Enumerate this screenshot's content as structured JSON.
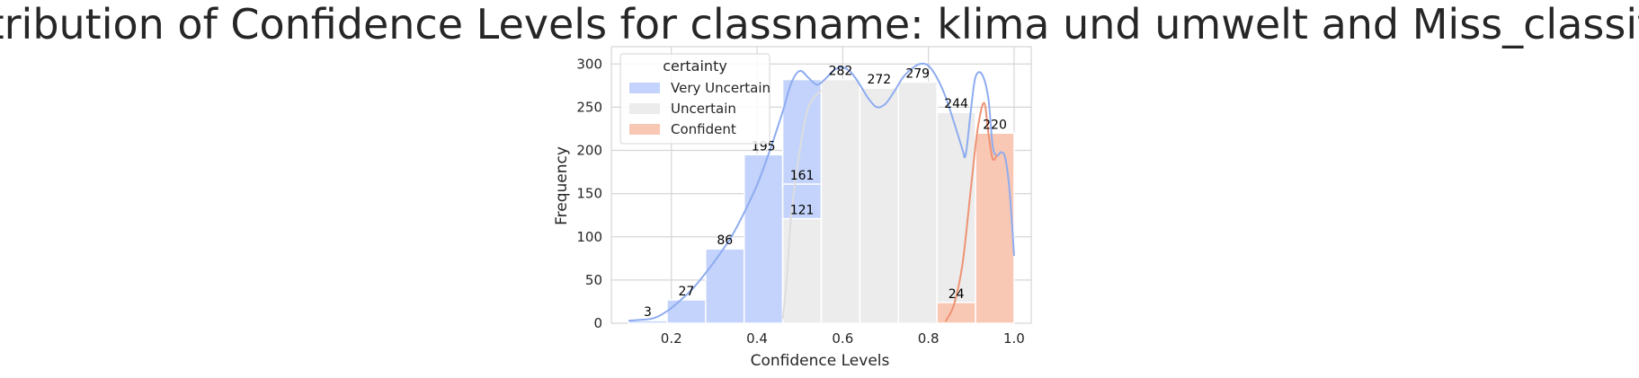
{
  "chart_data": {
    "type": "bar",
    "title": "Distribution of Confidence Levels for classname: klima und umwelt and Miss_classified",
    "xlabel": "Confidence Levels",
    "ylabel": "Frequency",
    "xlim": [
      0.06,
      1.04
    ],
    "ylim": [
      0,
      320
    ],
    "xticks": [
      "0.2",
      "0.4",
      "0.6",
      "0.8",
      "1.0"
    ],
    "xtick_values": [
      0.2,
      0.4,
      0.6,
      0.8,
      1.0
    ],
    "yticks": [
      "0",
      "50",
      "100",
      "150",
      "200",
      "250",
      "300"
    ],
    "ytick_values": [
      0,
      50,
      100,
      150,
      200,
      250,
      300
    ],
    "grid": true,
    "legend": {
      "title": "certainty",
      "placement": "top-left",
      "entries": [
        "Very Uncertain",
        "Uncertain",
        "Confident"
      ]
    },
    "colors": {
      "Very Uncertain": "#c3d3fb",
      "Uncertain": "#ececec",
      "Confident": "#f8c8b4",
      "kde_very_uncertain": "#8eacf0",
      "kde_uncertain": "#dddddd",
      "kde_confident": "#ee9374",
      "grid": "#d6d6d6",
      "axes": "#cccccc"
    },
    "bars": [
      {
        "x0": 0.1,
        "x1": 0.19,
        "value": 3,
        "series": "Very Uncertain",
        "label": "3"
      },
      {
        "x0": 0.19,
        "x1": 0.28,
        "value": 27,
        "series": "Very Uncertain",
        "label": "27"
      },
      {
        "x0": 0.28,
        "x1": 0.37,
        "value": 86,
        "series": "Very Uncertain",
        "label": "86"
      },
      {
        "x0": 0.37,
        "x1": 0.46,
        "value": 195,
        "series": "Very Uncertain",
        "label": "195"
      },
      {
        "x0": 0.46,
        "x1": 0.55,
        "value": 282,
        "series": "Very Uncertain",
        "label": ""
      },
      {
        "x0": 0.46,
        "x1": 0.55,
        "value": 161,
        "series": "Very Uncertain",
        "label": "161"
      },
      {
        "x0": 0.46,
        "x1": 0.55,
        "value": 121,
        "series": "Uncertain",
        "label": "121"
      },
      {
        "x0": 0.55,
        "x1": 0.64,
        "value": 282,
        "series": "Uncertain",
        "label": "282"
      },
      {
        "x0": 0.64,
        "x1": 0.73,
        "value": 272,
        "series": "Uncertain",
        "label": "272"
      },
      {
        "x0": 0.73,
        "x1": 0.82,
        "value": 279,
        "series": "Uncertain",
        "label": "279"
      },
      {
        "x0": 0.82,
        "x1": 0.91,
        "value": 244,
        "series": "Uncertain",
        "label": "244"
      },
      {
        "x0": 0.82,
        "x1": 0.91,
        "value": 24,
        "series": "Confident",
        "label": "24"
      },
      {
        "x0": 0.91,
        "x1": 1.0,
        "value": 220,
        "series": "Confident",
        "label": "220"
      }
    ],
    "kde": [
      {
        "series": "Very Uncertain",
        "points": [
          [
            0.1,
            3
          ],
          [
            0.13,
            4
          ],
          [
            0.16,
            6
          ],
          [
            0.19,
            14
          ],
          [
            0.22,
            26
          ],
          [
            0.25,
            40
          ],
          [
            0.28,
            58
          ],
          [
            0.31,
            78
          ],
          [
            0.34,
            100
          ],
          [
            0.37,
            128
          ],
          [
            0.4,
            160
          ],
          [
            0.43,
            200
          ],
          [
            0.46,
            245
          ],
          [
            0.48,
            278
          ],
          [
            0.5,
            292
          ],
          [
            0.52,
            284
          ],
          [
            0.54,
            276
          ],
          [
            0.56,
            283
          ],
          [
            0.58,
            293
          ],
          [
            0.6,
            296
          ],
          [
            0.62,
            290
          ],
          [
            0.64,
            276
          ],
          [
            0.66,
            260
          ],
          [
            0.68,
            250
          ],
          [
            0.7,
            254
          ],
          [
            0.72,
            268
          ],
          [
            0.74,
            284
          ],
          [
            0.76,
            294
          ],
          [
            0.78,
            300
          ],
          [
            0.8,
            298
          ],
          [
            0.82,
            284
          ],
          [
            0.84,
            262
          ],
          [
            0.86,
            232
          ],
          [
            0.88,
            200
          ],
          [
            0.885,
            192
          ],
          [
            0.89,
            205
          ],
          [
            0.9,
            250
          ],
          [
            0.91,
            285
          ],
          [
            0.925,
            288
          ],
          [
            0.94,
            260
          ],
          [
            0.95,
            205
          ],
          [
            0.96,
            194
          ],
          [
            0.97,
            198
          ],
          [
            0.98,
            190
          ],
          [
            0.99,
            150
          ],
          [
            1.0,
            78
          ]
        ]
      },
      {
        "series": "Uncertain",
        "points": [
          [
            0.46,
            5
          ],
          [
            0.47,
            55
          ],
          [
            0.48,
            125
          ],
          [
            0.5,
            200
          ],
          [
            0.52,
            250
          ],
          [
            0.55,
            270
          ]
        ]
      },
      {
        "series": "Confident",
        "points": [
          [
            0.84,
            2
          ],
          [
            0.86,
            22
          ],
          [
            0.88,
            70
          ],
          [
            0.9,
            160
          ],
          [
            0.915,
            225
          ],
          [
            0.93,
            255
          ],
          [
            0.94,
            220
          ],
          [
            0.95,
            190
          ],
          [
            0.96,
            195
          ]
        ]
      }
    ]
  }
}
